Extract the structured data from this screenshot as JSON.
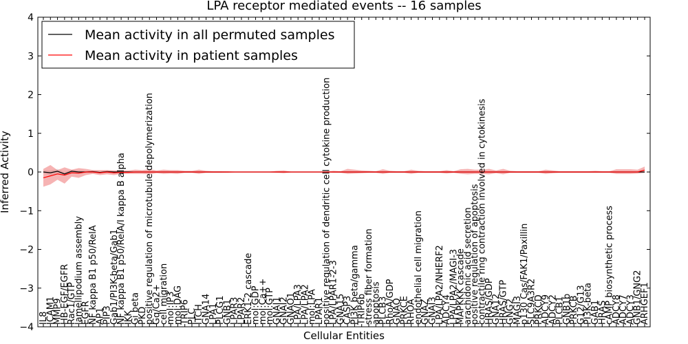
{
  "chart_data": {
    "type": "line",
    "title": "LPA receptor mediated events -- 16 samples",
    "xlabel": "Cellular Entities",
    "ylabel": "Inferred Activity",
    "ylim": [
      -4,
      4
    ],
    "yticks": [
      -4,
      -3,
      -2,
      -1,
      0,
      1,
      2,
      3,
      4
    ],
    "grid": false,
    "legend_position": "top-left",
    "colors": {
      "permuted": "#000000",
      "patient": "#ff0000",
      "patient_band": "#f08080",
      "permuted_band": "#c8c8c8"
    },
    "categories": [
      "IL8",
      "ICAM1",
      "MMP9",
      "HB-EGF/EGFR",
      "Rac1/GTP",
      "lamellipodium assembly",
      "EGFR",
      "NF kappa B1 p50/RelA",
      "AP1",
      "PIP3",
      "Gab1/PI3K-beta/Gab1",
      "NF kappa B1 p50/RelA/I kappa B alpha",
      "IKK",
      "Gi beta",
      "PKD",
      "positive regulation of microtubule depolymerization",
      "Gq/Ca2+",
      "cell migration",
      "mol:IP3",
      "mol:DAG",
      "TRIP6",
      "PLC",
      "ITCH",
      "GNA14",
      "LPA1",
      "PLCG1",
      "GNB1",
      "LPAR3",
      "LPAR2",
      "ERK1-2 cascade",
      "mol:GDP",
      "mol:Ca++",
      "mol:GTP",
      "GNAI1",
      "GNAI2",
      "GNAO1",
      "LPA/LPA3",
      "LPA/LPA2",
      "mol:LPA",
      "LPAR1",
      "positive regulation of dendritic cell cytokine production",
      "LPA/LPAR1-2-3",
      "GNA15",
      "CASP3",
      "PI3K beta/gamma",
      "TRIP6b",
      "stress fiber formation",
      "apoptosis",
      "PLCB3",
      "RhoA/GDP",
      "GNAQ",
      "PRKCE",
      "RHOA",
      "endothelial cell migration",
      "GNAZ",
      "GNAI3",
      "LPA/LPA2/NHERF2",
      "ADCY4",
      "LPA/LPA2/MAGI-3",
      "MAPKKK cascade",
      "arachidonic acid secretion",
      "positive regulation of apoptosis",
      "contractile ring contraction involved in cytokinesis",
      "HRAS/GDP",
      "GNA12",
      "HRAS/GTP",
      "GNG2",
      "MAGI3",
      "p130 Cas/FAK1/Paxillin",
      "SLC9A3R2",
      "PRKCD",
      "ADCY9",
      "ADCY2",
      "PLCB1",
      "GNB1b",
      "PRKCB",
      "G12/G13",
      "PI3K-beta",
      "GAB1",
      "HRAS",
      "cAMP biosynthetic process",
      "ADCY8",
      "ADCY7",
      "ADCY3",
      "GNB1/GNG2",
      "ARHGEF1"
    ],
    "series": [
      {
        "name": "Mean activity in all permuted samples",
        "values": [
          0.0,
          -0.02,
          0.02,
          -0.05,
          0.02,
          0.0,
          0.0,
          0.01,
          -0.01,
          0.01,
          0.0,
          0.0,
          0.0,
          0.0,
          0.0,
          0.0,
          0.0,
          0.0,
          0.0,
          0.0,
          0.0,
          0.0,
          0.0,
          0.0,
          0.0,
          0.0,
          0.0,
          0.0,
          0.0,
          0.0,
          0.0,
          0.0,
          0.0,
          0.0,
          0.0,
          0.0,
          0.0,
          0.0,
          0.0,
          0.0,
          0.0,
          0.0,
          0.0,
          0.0,
          0.0,
          0.0,
          0.0,
          0.0,
          0.0,
          0.0,
          0.0,
          0.0,
          0.0,
          0.0,
          0.0,
          0.0,
          0.0,
          0.0,
          0.0,
          0.0,
          0.0,
          0.0,
          0.0,
          0.0,
          0.0,
          0.0,
          0.0,
          0.0,
          0.0,
          0.0,
          0.0,
          0.0,
          0.0,
          0.0,
          0.0,
          0.0,
          0.0,
          0.0,
          0.0,
          0.0,
          0.0,
          0.0,
          0.0,
          0.0,
          0.0,
          0.0
        ],
        "lower": [
          -0.04,
          -0.08,
          -0.05,
          -0.1,
          -0.04,
          -0.04,
          -0.03,
          -0.03,
          -0.04,
          -0.03,
          -0.03,
          -0.02,
          -0.02,
          -0.02,
          -0.02,
          -0.02,
          -0.02,
          -0.02,
          -0.02,
          -0.02,
          -0.02,
          -0.02,
          -0.02,
          -0.02,
          -0.02,
          -0.02,
          -0.01,
          -0.01,
          -0.01,
          -0.01,
          -0.01,
          -0.01,
          -0.01,
          -0.01,
          -0.01,
          -0.01,
          -0.01,
          -0.01,
          -0.01,
          -0.01,
          -0.01,
          -0.01,
          -0.02,
          -0.02,
          -0.02,
          -0.02,
          -0.02,
          -0.02,
          -0.02,
          -0.02,
          -0.02,
          -0.02,
          -0.02,
          -0.02,
          -0.02,
          -0.02,
          -0.02,
          -0.02,
          -0.02,
          -0.02,
          -0.02,
          -0.02,
          -0.02,
          -0.02,
          -0.02,
          -0.02,
          -0.02,
          -0.02,
          -0.02,
          -0.02,
          -0.02,
          -0.02,
          -0.02,
          -0.02,
          -0.02,
          -0.02,
          -0.02,
          -0.02,
          -0.02,
          -0.02,
          -0.02,
          -0.02,
          -0.02,
          -0.02,
          -0.02,
          -0.02
        ],
        "upper": [
          0.04,
          0.04,
          0.08,
          0.0,
          0.06,
          0.04,
          0.03,
          0.05,
          0.02,
          0.05,
          0.03,
          0.02,
          0.02,
          0.02,
          0.02,
          0.02,
          0.02,
          0.02,
          0.02,
          0.02,
          0.02,
          0.02,
          0.02,
          0.02,
          0.02,
          0.02,
          0.01,
          0.01,
          0.01,
          0.01,
          0.01,
          0.01,
          0.01,
          0.01,
          0.01,
          0.01,
          0.01,
          0.01,
          0.01,
          0.01,
          0.01,
          0.01,
          0.02,
          0.02,
          0.02,
          0.02,
          0.02,
          0.02,
          0.02,
          0.02,
          0.02,
          0.02,
          0.02,
          0.02,
          0.02,
          0.02,
          0.02,
          0.02,
          0.02,
          0.02,
          0.02,
          0.02,
          0.02,
          0.02,
          0.02,
          0.02,
          0.02,
          0.02,
          0.02,
          0.02,
          0.02,
          0.02,
          0.02,
          0.02,
          0.02,
          0.02,
          0.02,
          0.02,
          0.02,
          0.02,
          0.02,
          0.02,
          0.02,
          0.02,
          0.02,
          0.02
        ]
      },
      {
        "name": "Mean activity in patient samples",
        "values": [
          -0.15,
          -0.1,
          -0.05,
          -0.08,
          -0.02,
          -0.03,
          0.0,
          0.0,
          -0.02,
          0.0,
          -0.02,
          -0.01,
          -0.01,
          0.0,
          0.0,
          0.0,
          0.0,
          0.0,
          0.0,
          0.0,
          0.0,
          0.0,
          0.0,
          0.0,
          0.0,
          0.0,
          0.0,
          0.0,
          0.0,
          0.0,
          0.0,
          0.0,
          0.0,
          0.0,
          0.0,
          0.0,
          0.0,
          0.0,
          0.0,
          0.0,
          0.0,
          0.0,
          0.0,
          0.0,
          0.0,
          0.0,
          0.0,
          0.0,
          0.0,
          0.0,
          0.0,
          0.0,
          0.0,
          0.0,
          0.0,
          0.0,
          0.0,
          0.0,
          0.0,
          0.0,
          0.0,
          0.0,
          0.0,
          0.0,
          0.0,
          0.0,
          0.0,
          0.0,
          0.0,
          0.0,
          0.0,
          0.0,
          0.0,
          0.0,
          0.0,
          0.0,
          0.0,
          0.0,
          0.0,
          0.0,
          0.0,
          0.0,
          0.0,
          0.0,
          0.0,
          0.05
        ],
        "lower": [
          -0.38,
          -0.32,
          -0.2,
          -0.3,
          -0.12,
          -0.15,
          -0.08,
          -0.05,
          -0.08,
          -0.06,
          -0.08,
          -0.05,
          -0.05,
          -0.05,
          -0.05,
          -0.06,
          -0.03,
          -0.05,
          -0.04,
          -0.05,
          -0.02,
          -0.02,
          -0.05,
          -0.02,
          -0.02,
          -0.02,
          -0.02,
          -0.01,
          -0.01,
          -0.01,
          -0.01,
          -0.01,
          -0.01,
          -0.02,
          -0.03,
          -0.01,
          -0.01,
          -0.01,
          -0.01,
          -0.01,
          -0.01,
          -0.02,
          -0.02,
          -0.05,
          -0.04,
          -0.03,
          -0.02,
          -0.02,
          -0.05,
          -0.02,
          -0.02,
          -0.02,
          -0.05,
          -0.02,
          -0.02,
          -0.02,
          -0.02,
          -0.04,
          -0.02,
          -0.05,
          -0.06,
          -0.05,
          -0.05,
          -0.06,
          -0.03,
          -0.06,
          -0.02,
          -0.02,
          -0.02,
          -0.02,
          -0.02,
          -0.05,
          -0.03,
          -0.02,
          -0.02,
          -0.02,
          -0.02,
          -0.02,
          -0.02,
          -0.02,
          -0.02,
          -0.05,
          -0.05,
          -0.05,
          -0.04,
          -0.02
        ],
        "upper": [
          0.08,
          0.18,
          0.05,
          0.12,
          0.06,
          0.1,
          0.08,
          0.05,
          0.05,
          0.05,
          0.04,
          0.04,
          0.04,
          0.06,
          0.05,
          0.07,
          0.04,
          0.06,
          0.05,
          0.05,
          0.03,
          0.03,
          0.06,
          0.03,
          0.02,
          0.02,
          0.02,
          0.01,
          0.01,
          0.01,
          0.01,
          0.01,
          0.01,
          0.03,
          0.04,
          0.01,
          0.01,
          0.01,
          0.01,
          0.01,
          0.01,
          0.03,
          0.02,
          0.08,
          0.06,
          0.04,
          0.03,
          0.02,
          0.07,
          0.03,
          0.02,
          0.02,
          0.06,
          0.03,
          0.02,
          0.02,
          0.02,
          0.05,
          0.02,
          0.07,
          0.08,
          0.06,
          0.06,
          0.08,
          0.04,
          0.08,
          0.03,
          0.02,
          0.02,
          0.02,
          0.02,
          0.06,
          0.04,
          0.02,
          0.02,
          0.02,
          0.02,
          0.02,
          0.03,
          0.02,
          0.02,
          0.07,
          0.07,
          0.07,
          0.06,
          0.14
        ]
      }
    ]
  }
}
